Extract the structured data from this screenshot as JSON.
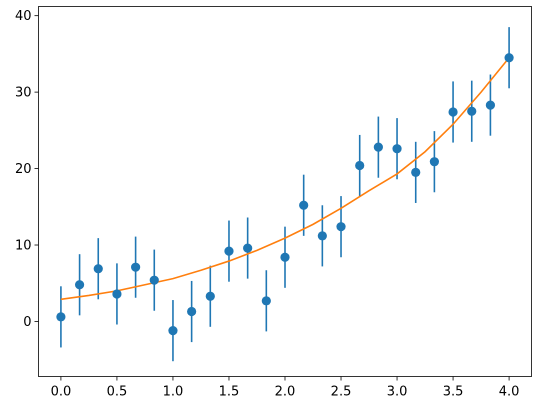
{
  "chart_data": {
    "type": "scatter",
    "title": "",
    "xlabel": "",
    "ylabel": "",
    "xlim": [
      -0.2,
      4.2
    ],
    "ylim": [
      -7.2,
      41.2
    ],
    "xticks": [
      0.0,
      0.5,
      1.0,
      1.5,
      2.0,
      2.5,
      3.0,
      3.5,
      4.0
    ],
    "xtick_labels": [
      "0.0",
      "0.5",
      "1.0",
      "1.5",
      "2.0",
      "2.5",
      "3.0",
      "3.5",
      "4.0"
    ],
    "yticks": [
      0,
      10,
      20,
      30,
      40
    ],
    "ytick_labels": [
      "0",
      "10",
      "20",
      "30",
      "40"
    ],
    "grid": false,
    "legend": "none",
    "series": [
      {
        "kind": "errorbar",
        "color": "#1f77b4",
        "x": [
          0.0,
          0.1667,
          0.3333,
          0.5,
          0.6667,
          0.8333,
          1.0,
          1.1667,
          1.3333,
          1.5,
          1.6667,
          1.8333,
          2.0,
          2.1667,
          2.3333,
          2.5,
          2.6667,
          2.8333,
          3.0,
          3.1667,
          3.3333,
          3.5,
          3.6667,
          3.8333,
          4.0
        ],
        "y": [
          0.6,
          4.8,
          6.9,
          3.6,
          7.1,
          5.4,
          -1.2,
          1.3,
          3.3,
          9.2,
          9.6,
          2.7,
          8.4,
          15.2,
          11.2,
          12.4,
          20.4,
          22.8,
          22.6,
          19.5,
          20.9,
          27.4,
          27.5,
          28.3,
          34.5
        ],
        "yerr": 4.0
      },
      {
        "kind": "line",
        "color": "#ff7f0e",
        "x": [
          0.0,
          0.25,
          0.5,
          0.75,
          1.0,
          1.25,
          1.5,
          1.75,
          2.0,
          2.25,
          2.5,
          2.75,
          3.0,
          3.25,
          3.5,
          3.75,
          4.0
        ],
        "y": [
          2.9,
          3.4,
          4.0,
          4.8,
          5.6,
          6.7,
          7.9,
          9.3,
          10.9,
          12.7,
          14.8,
          17.1,
          19.3,
          22.2,
          25.8,
          30.0,
          34.5
        ]
      }
    ]
  }
}
